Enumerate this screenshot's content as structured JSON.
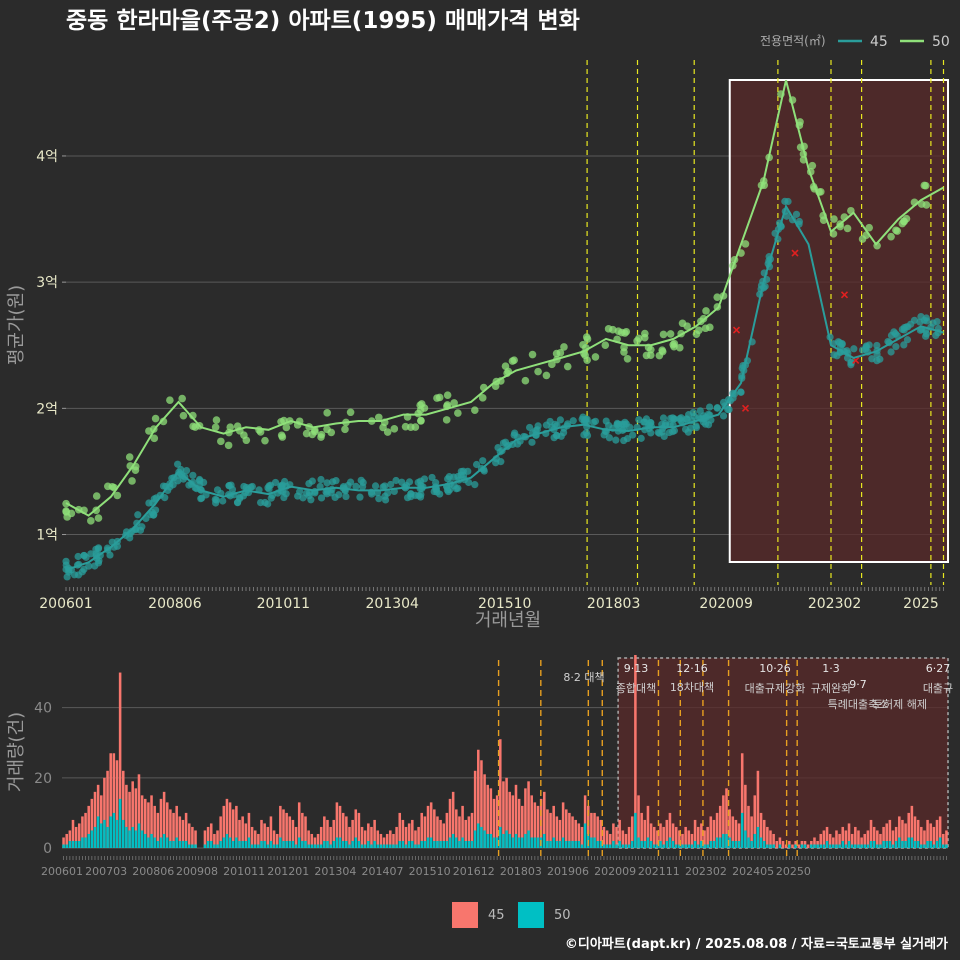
{
  "title": "중동 한라마을(주공2) 아파트(1995) 매매가격 변화",
  "footer": "©디아파트(dapt.kr) / 2025.08.08 / 자료=국토교통부 실거래가",
  "colors": {
    "background": "#2b2b2b",
    "grid": "#5a5a5a",
    "series45": "#2a9d9b",
    "series50": "#8fe07a",
    "bar45": "#f8766d",
    "bar50": "#00bfc4",
    "policy_line": "#e8e820",
    "policy_line_bottom": "#e8a020",
    "highlight_fill": "#5a2a2a",
    "highlight_border": "#ffffff",
    "annotation_cross": "#e02020"
  },
  "top_chart": {
    "ylabel": "평균가(원)",
    "xlabel": "거래년월",
    "y_ticks": [
      "1억",
      "2억",
      "3억",
      "4억"
    ],
    "x_ticks": [
      "200601",
      "200806",
      "201011",
      "201304",
      "201510",
      "201803",
      "202009",
      "202302",
      "2025"
    ],
    "legend_title": "전용면적(㎡)",
    "legend_items": [
      "45",
      "50"
    ]
  },
  "bottom_chart": {
    "ylabel": "거래량(건)",
    "y_ticks": [
      "0",
      "20",
      "40"
    ],
    "x_ticks": [
      "200601",
      "200703",
      "200806",
      "200908",
      "201011",
      "201201",
      "201304",
      "201407",
      "201510",
      "201612",
      "201803",
      "201906",
      "202009",
      "202111",
      "202302",
      "202405",
      "20250"
    ],
    "legend_items": [
      "45",
      "50"
    ]
  },
  "policies": [
    {
      "date": "8·2 대책",
      "label_top": "",
      "label_bottom": "8·2 대책"
    },
    {
      "date": "9·13",
      "label_top": "9·13",
      "label_bottom": "종합대책"
    },
    {
      "date": "12·16",
      "label_top": "12·16",
      "label_bottom": "18차대책"
    },
    {
      "date": "10·26",
      "label_top": "10·26",
      "label_bottom": "대출규제강화"
    },
    {
      "date": "1·3",
      "label_top": "1·3",
      "label_bottom": "규제완화"
    },
    {
      "date": "9·7",
      "label_top": "9·7",
      "label_bottom": "특례대출축소"
    },
    {
      "date": "토허제 해제",
      "label_top": "",
      "label_bottom": "토허제 해제"
    },
    {
      "date": "6·27",
      "label_top": "6·27",
      "label_bottom": "대출규"
    }
  ],
  "chart_data": [
    {
      "type": "line",
      "title": "중동 한라마을(주공2) 아파트(1995) 매매가격 변화",
      "xlabel": "거래년월",
      "ylabel": "평균가(원)",
      "y_unit": "억",
      "ylim": [
        0.6,
        4.8
      ],
      "x": [
        2006.0,
        2006.5,
        2007.0,
        2007.5,
        2008.0,
        2008.5,
        2009.0,
        2009.5,
        2010.0,
        2010.5,
        2011.0,
        2011.5,
        2012.0,
        2012.5,
        2013.0,
        2013.5,
        2014.0,
        2014.5,
        2015.0,
        2015.5,
        2016.0,
        2016.5,
        2017.0,
        2017.5,
        2018.0,
        2018.5,
        2019.0,
        2019.5,
        2020.0,
        2020.5,
        2021.0,
        2021.5,
        2022.0,
        2022.5,
        2023.0,
        2023.5,
        2024.0,
        2024.5,
        2025.0,
        2025.5
      ],
      "series": [
        {
          "name": "45",
          "values": [
            0.72,
            0.78,
            0.9,
            1.05,
            1.25,
            1.5,
            1.35,
            1.3,
            1.35,
            1.32,
            1.38,
            1.35,
            1.37,
            1.35,
            1.35,
            1.37,
            1.37,
            1.4,
            1.45,
            1.6,
            1.75,
            1.8,
            1.85,
            1.87,
            1.83,
            1.82,
            1.85,
            1.85,
            1.9,
            1.95,
            2.2,
            3.0,
            3.6,
            3.3,
            2.5,
            2.4,
            2.45,
            2.55,
            2.65,
            2.6
          ]
        },
        {
          "name": "50",
          "values": [
            1.25,
            1.15,
            1.3,
            1.55,
            1.85,
            2.05,
            1.85,
            1.8,
            1.85,
            1.83,
            1.9,
            1.85,
            1.88,
            1.9,
            1.9,
            1.95,
            1.95,
            2.0,
            2.05,
            2.2,
            2.3,
            2.35,
            2.4,
            2.45,
            2.55,
            2.5,
            2.5,
            2.55,
            2.65,
            2.8,
            3.3,
            3.8,
            4.6,
            3.9,
            3.4,
            3.55,
            3.3,
            3.5,
            3.65,
            3.75
          ]
        }
      ]
    },
    {
      "type": "bar",
      "xlabel": "",
      "ylabel": "거래량(건)",
      "ylim": [
        0,
        55
      ],
      "x_start": 2006.0,
      "x_step_months": 1,
      "series": [
        {
          "name": "45",
          "values": [
            3,
            4,
            5,
            8,
            6,
            7,
            9,
            10,
            12,
            14,
            16,
            18,
            15,
            20,
            22,
            27,
            27,
            25,
            50,
            22,
            18,
            16,
            19,
            17,
            21,
            15,
            14,
            13,
            15,
            12,
            10,
            14,
            16,
            13,
            11,
            10,
            12,
            9,
            8,
            10,
            7,
            6,
            5,
            0,
            0,
            5,
            6,
            7,
            4,
            5,
            9,
            12,
            14,
            13,
            11,
            12,
            8,
            9,
            7,
            10,
            6,
            5,
            4,
            8,
            7,
            6,
            9,
            5,
            4,
            12,
            11,
            10,
            9,
            8,
            6,
            13,
            10,
            9,
            5,
            4,
            3,
            4,
            6,
            9,
            8,
            6,
            8,
            13,
            12,
            10,
            9,
            6,
            8,
            11,
            10,
            6,
            5,
            7,
            6,
            8,
            5,
            4,
            3,
            4,
            5,
            4,
            6,
            10,
            8,
            6,
            7,
            8,
            5,
            6,
            10,
            9,
            12,
            13,
            11,
            9,
            8,
            7,
            10,
            14,
            16,
            11,
            9,
            12,
            8,
            9,
            10,
            22,
            28,
            25,
            21,
            18,
            17,
            14,
            15,
            31,
            19,
            20,
            16,
            15,
            18,
            14,
            12,
            17,
            19,
            15,
            13,
            12,
            14,
            16,
            11,
            10,
            12,
            9,
            8,
            13,
            11,
            10,
            9,
            8,
            7,
            6,
            15,
            12,
            10,
            10,
            9,
            8,
            6,
            5,
            4,
            7,
            6,
            8,
            5,
            4,
            6,
            9,
            55,
            15,
            10,
            8,
            12,
            7,
            6,
            5,
            7,
            6,
            8,
            10,
            7,
            6,
            5,
            4,
            6,
            5,
            4,
            8,
            6,
            7,
            5,
            6,
            9,
            8,
            10,
            12,
            15,
            17,
            11,
            9,
            8,
            7,
            27,
            18,
            12,
            9,
            15,
            22,
            10,
            8,
            6,
            5,
            4,
            2,
            3,
            2,
            1,
            2,
            1,
            2,
            1,
            2,
            2,
            1,
            2,
            3,
            2,
            4,
            5,
            6,
            4,
            3,
            5,
            4,
            6,
            5,
            7,
            4,
            6,
            5,
            3,
            4,
            5,
            8,
            6,
            5,
            4,
            6,
            7,
            8,
            5,
            6,
            9,
            8,
            7,
            10,
            12,
            9,
            8,
            6,
            5,
            8,
            7,
            6,
            8,
            9,
            4,
            5
          ]
        },
        {
          "name": "50",
          "values": [
            1,
            1,
            2,
            2,
            2,
            2,
            3,
            3,
            4,
            5,
            6,
            9,
            7,
            8,
            6,
            9,
            10,
            8,
            14,
            8,
            6,
            5,
            6,
            5,
            7,
            5,
            4,
            3,
            4,
            3,
            2,
            3,
            4,
            3,
            2,
            2,
            3,
            2,
            2,
            2,
            1,
            1,
            1,
            0,
            0,
            1,
            2,
            2,
            1,
            1,
            2,
            3,
            4,
            3,
            2,
            3,
            2,
            2,
            2,
            3,
            1,
            1,
            1,
            2,
            2,
            1,
            2,
            1,
            1,
            3,
            2,
            2,
            2,
            2,
            1,
            3,
            2,
            2,
            1,
            1,
            1,
            1,
            1,
            2,
            2,
            1,
            2,
            3,
            3,
            2,
            2,
            1,
            2,
            3,
            2,
            1,
            1,
            2,
            1,
            2,
            1,
            1,
            1,
            1,
            1,
            1,
            1,
            2,
            2,
            1,
            2,
            2,
            1,
            1,
            2,
            2,
            3,
            3,
            2,
            2,
            2,
            2,
            2,
            3,
            4,
            3,
            2,
            3,
            2,
            2,
            2,
            5,
            7,
            6,
            5,
            4,
            4,
            3,
            3,
            6,
            4,
            5,
            4,
            3,
            4,
            3,
            3,
            4,
            5,
            3,
            3,
            3,
            3,
            4,
            2,
            2,
            3,
            2,
            2,
            3,
            2,
            2,
            2,
            2,
            2,
            1,
            7,
            4,
            3,
            3,
            2,
            2,
            1,
            1,
            1,
            2,
            1,
            2,
            1,
            1,
            1,
            2,
            10,
            3,
            2,
            2,
            3,
            2,
            1,
            1,
            2,
            1,
            2,
            3,
            2,
            1,
            1,
            1,
            1,
            1,
            1,
            2,
            1,
            2,
            1,
            1,
            2,
            2,
            3,
            3,
            4,
            4,
            3,
            2,
            2,
            2,
            10,
            5,
            3,
            2,
            4,
            6,
            3,
            2,
            1,
            1,
            1,
            0,
            1,
            0,
            0,
            1,
            0,
            1,
            0,
            1,
            1,
            0,
            1,
            1,
            1,
            1,
            1,
            2,
            1,
            1,
            1,
            1,
            2,
            1,
            2,
            1,
            1,
            1,
            1,
            1,
            1,
            2,
            2,
            1,
            1,
            2,
            2,
            2,
            1,
            2,
            3,
            2,
            2,
            3,
            3,
            2,
            2,
            1,
            1,
            2,
            2,
            1,
            2,
            3,
            1,
            1
          ]
        }
      ]
    }
  ]
}
